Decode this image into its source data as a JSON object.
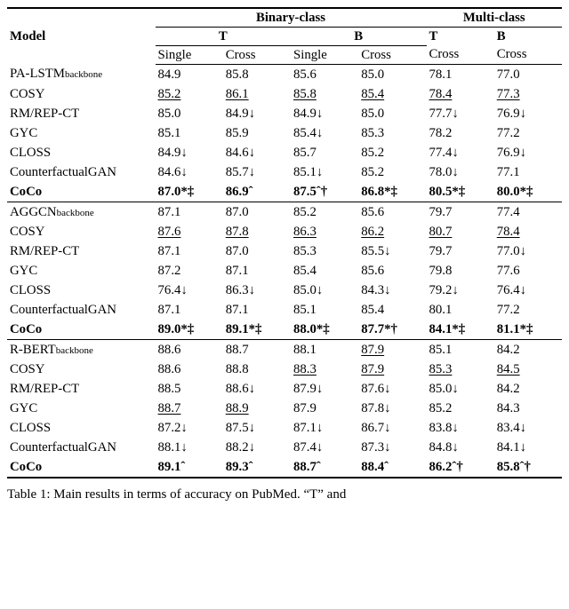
{
  "table": {
    "header": {
      "model": "Model",
      "binary": "Binary-class",
      "multi": "Multi-class",
      "T": "T",
      "B": "B",
      "single": "Single",
      "cross": "Cross"
    },
    "colors": {
      "text": "#000000",
      "background": "#ffffff",
      "rule": "#000000"
    },
    "groups": [
      {
        "rows": [
          {
            "model_html": "PA-LSTM<span class='sub'>backbone</span>",
            "cells": [
              {
                "t": "84.9"
              },
              {
                "t": "85.8"
              },
              {
                "t": "85.6"
              },
              {
                "t": "85.0"
              },
              {
                "t": "78.1"
              },
              {
                "t": "77.0"
              }
            ]
          },
          {
            "model_html": "COSY",
            "cells": [
              {
                "t": "85.2",
                "u": 1
              },
              {
                "t": "86.1",
                "u": 1
              },
              {
                "t": "85.8",
                "u": 1
              },
              {
                "t": "85.4",
                "u": 1
              },
              {
                "t": "78.4",
                "u": 1
              },
              {
                "t": "77.3",
                "u": 1
              }
            ]
          },
          {
            "model_html": "RM/REP-CT",
            "cells": [
              {
                "t": "85.0"
              },
              {
                "t": "84.9↓"
              },
              {
                "t": "84.9↓"
              },
              {
                "t": "85.0"
              },
              {
                "t": "77.7↓"
              },
              {
                "t": "76.9↓"
              }
            ]
          },
          {
            "model_html": "GYC",
            "cells": [
              {
                "t": "85.1"
              },
              {
                "t": "85.9"
              },
              {
                "t": "85.4↓"
              },
              {
                "t": "85.3"
              },
              {
                "t": "78.2"
              },
              {
                "t": "77.2"
              }
            ]
          },
          {
            "model_html": "CLOSS",
            "cells": [
              {
                "t": "84.9↓"
              },
              {
                "t": "84.6↓"
              },
              {
                "t": "85.7"
              },
              {
                "t": "85.2"
              },
              {
                "t": "77.4↓"
              },
              {
                "t": "76.9↓"
              }
            ]
          },
          {
            "model_html": "CounterfactualGAN",
            "cells": [
              {
                "t": "84.6↓"
              },
              {
                "t": "85.7↓"
              },
              {
                "t": "85.1↓"
              },
              {
                "t": "85.2"
              },
              {
                "t": "78.0↓"
              },
              {
                "t": "77.1"
              }
            ]
          },
          {
            "model_html": "<span class='bold'>CoCo</span>",
            "cells": [
              {
                "t": "87.0*‡",
                "b": 1
              },
              {
                "t": "86.9ˆ",
                "b": 1
              },
              {
                "t": "87.5ˆ†",
                "b": 1
              },
              {
                "t": "86.8*‡",
                "b": 1
              },
              {
                "t": "80.5*‡",
                "b": 1
              },
              {
                "t": "80.0*‡",
                "b": 1
              }
            ]
          }
        ]
      },
      {
        "rows": [
          {
            "model_html": "AGGCN<span class='sub'>backbone</span>",
            "cells": [
              {
                "t": "87.1"
              },
              {
                "t": "87.0"
              },
              {
                "t": "85.2"
              },
              {
                "t": "85.6"
              },
              {
                "t": "79.7"
              },
              {
                "t": "77.4"
              }
            ]
          },
          {
            "model_html": "COSY",
            "cells": [
              {
                "t": "87.6",
                "u": 1
              },
              {
                "t": "87.8",
                "u": 1
              },
              {
                "t": "86.3",
                "u": 1
              },
              {
                "t": "86.2",
                "u": 1
              },
              {
                "t": "80.7",
                "u": 1
              },
              {
                "t": "78.4",
                "u": 1
              }
            ]
          },
          {
            "model_html": "RM/REP-CT",
            "cells": [
              {
                "t": "87.1"
              },
              {
                "t": "87.0"
              },
              {
                "t": "85.3"
              },
              {
                "t": "85.5↓"
              },
              {
                "t": "79.7"
              },
              {
                "t": "77.0↓"
              }
            ]
          },
          {
            "model_html": "GYC",
            "cells": [
              {
                "t": "87.2"
              },
              {
                "t": "87.1"
              },
              {
                "t": "85.4"
              },
              {
                "t": "85.6"
              },
              {
                "t": "79.8"
              },
              {
                "t": "77.6"
              }
            ]
          },
          {
            "model_html": "CLOSS",
            "cells": [
              {
                "t": "76.4↓"
              },
              {
                "t": "86.3↓"
              },
              {
                "t": "85.0↓"
              },
              {
                "t": "84.3↓"
              },
              {
                "t": "79.2↓"
              },
              {
                "t": "76.4↓"
              }
            ]
          },
          {
            "model_html": "CounterfactualGAN",
            "cells": [
              {
                "t": "87.1"
              },
              {
                "t": "87.1"
              },
              {
                "t": "85.1"
              },
              {
                "t": "85.4"
              },
              {
                "t": "80.1"
              },
              {
                "t": "77.2"
              }
            ]
          },
          {
            "model_html": "<span class='bold'>CoCo</span>",
            "cells": [
              {
                "t": "89.0*‡",
                "b": 1
              },
              {
                "t": "89.1*‡",
                "b": 1
              },
              {
                "t": "88.0*‡",
                "b": 1
              },
              {
                "t": "87.7*†",
                "b": 1
              },
              {
                "t": "84.1*‡",
                "b": 1
              },
              {
                "t": "81.1*‡",
                "b": 1
              }
            ]
          }
        ]
      },
      {
        "rows": [
          {
            "model_html": "R-BERT<span class='sub'>backbone</span>",
            "cells": [
              {
                "t": "88.6"
              },
              {
                "t": "88.7"
              },
              {
                "t": "88.1"
              },
              {
                "t": "87.9",
                "u": 1
              },
              {
                "t": "85.1"
              },
              {
                "t": "84.2"
              }
            ]
          },
          {
            "model_html": "COSY",
            "cells": [
              {
                "t": "88.6"
              },
              {
                "t": "88.8"
              },
              {
                "t": "88.3",
                "u": 1
              },
              {
                "t": "87.9",
                "u": 1
              },
              {
                "t": "85.3",
                "u": 1
              },
              {
                "t": "84.5",
                "u": 1
              }
            ]
          },
          {
            "model_html": "RM/REP-CT",
            "cells": [
              {
                "t": "88.5"
              },
              {
                "t": "88.6↓"
              },
              {
                "t": "87.9↓"
              },
              {
                "t": "87.6↓"
              },
              {
                "t": "85.0↓"
              },
              {
                "t": "84.2"
              }
            ]
          },
          {
            "model_html": "GYC",
            "cells": [
              {
                "t": "88.7",
                "u": 1
              },
              {
                "t": "88.9",
                "u": 1
              },
              {
                "t": "87.9"
              },
              {
                "t": "87.8↓"
              },
              {
                "t": "85.2"
              },
              {
                "t": "84.3"
              }
            ]
          },
          {
            "model_html": "CLOSS",
            "cells": [
              {
                "t": "87.2↓"
              },
              {
                "t": "87.5↓"
              },
              {
                "t": "87.1↓"
              },
              {
                "t": "86.7↓"
              },
              {
                "t": "83.8↓"
              },
              {
                "t": "83.4↓"
              }
            ]
          },
          {
            "model_html": "CounterfactualGAN",
            "cells": [
              {
                "t": "88.1↓"
              },
              {
                "t": "88.2↓"
              },
              {
                "t": "87.4↓"
              },
              {
                "t": "87.3↓"
              },
              {
                "t": "84.8↓"
              },
              {
                "t": "84.1↓"
              }
            ]
          },
          {
            "model_html": "<span class='bold'>CoCo</span>",
            "cells": [
              {
                "t": "89.1ˆ",
                "b": 1
              },
              {
                "t": "89.3ˆ",
                "b": 1
              },
              {
                "t": "88.7ˆ",
                "b": 1
              },
              {
                "t": "88.4ˆ",
                "b": 1
              },
              {
                "t": "86.2ˆ†",
                "b": 1
              },
              {
                "t": "85.8ˆ†",
                "b": 1
              }
            ]
          }
        ]
      }
    ]
  },
  "caption": "Table 1:  Main results in terms of accuracy on PubMed.  “T” and"
}
